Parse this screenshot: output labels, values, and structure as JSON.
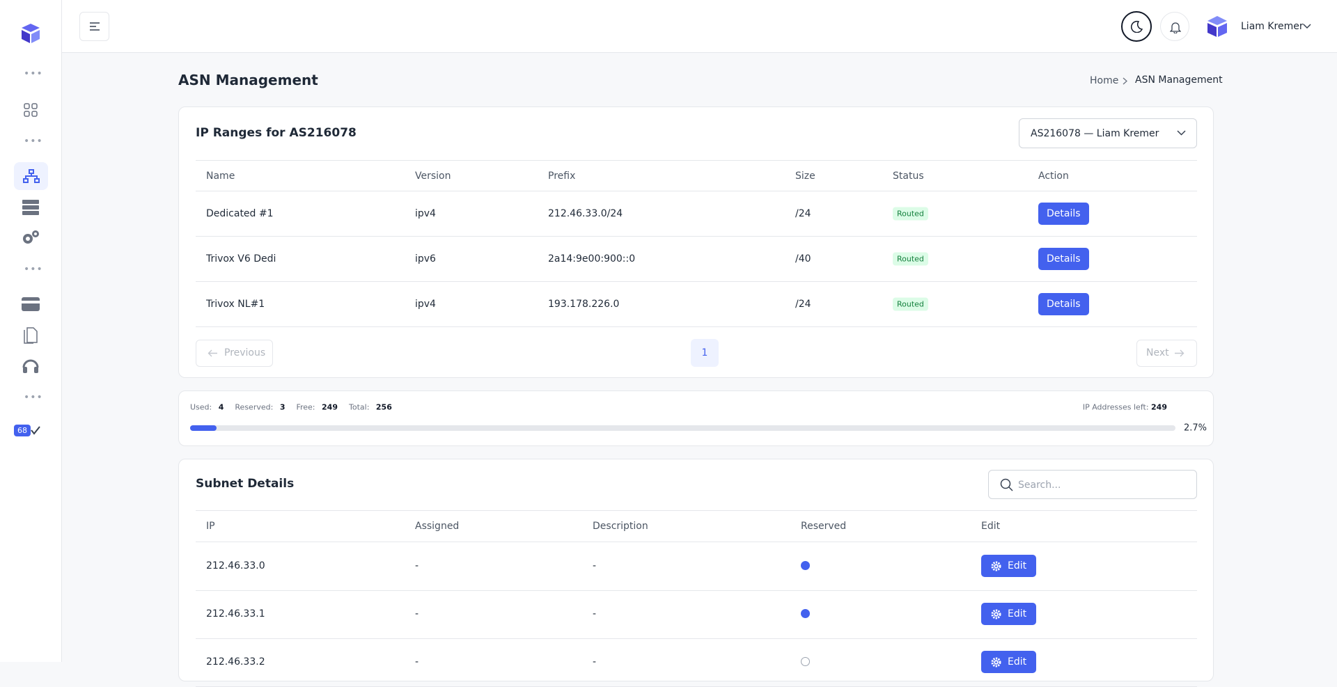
{
  "header": {
    "user_name": "Liam Kremer"
  },
  "sidebar": {
    "badge": "68"
  },
  "page": {
    "title": "ASN Management",
    "breadcrumb": [
      "Home",
      "ASN Management"
    ]
  },
  "ip_ranges": {
    "title": "IP Ranges for AS216078",
    "selector": "AS216078 — Liam Kremer",
    "columns": [
      "Name",
      "Version",
      "Prefix",
      "Size",
      "Status",
      "Action"
    ],
    "rows": [
      [
        "Dedicated #1",
        "ipv4",
        "212.46.33.0/24",
        "/24",
        "Routed",
        "Details"
      ],
      [
        "Trivox V6 Dedi",
        "ipv6",
        "2a14:9e00:900::0",
        "/40",
        "Routed",
        "Details"
      ],
      [
        "Trivox NL#1",
        "ipv4",
        "193.178.226.0",
        "/24",
        "Routed",
        "Details"
      ]
    ],
    "pagination": {
      "previous": "Previous",
      "page": "1",
      "next": "Next"
    }
  },
  "usage": {
    "stats": [
      {
        "label": "Used:",
        "value": 4
      },
      {
        "label": "Reserved:",
        "value": 3
      },
      {
        "label": "Free:",
        "value": 249
      },
      {
        "label": "Total:",
        "value": 256
      }
    ],
    "left_label": "IP Addresses left:",
    "left_value": 249,
    "percent": {
      "value": 2.7,
      "label": "2.7%"
    }
  },
  "subnet": {
    "title": "Subnet Details",
    "search_placeholder": "Search...",
    "columns": [
      "IP",
      "Assigned",
      "Description",
      "Reserved",
      "Edit"
    ],
    "rows": [
      {
        "ip": "212.46.33.0",
        "assigned": "-",
        "description": "-",
        "reserved": true,
        "edit": "Edit"
      },
      {
        "ip": "212.46.33.1",
        "assigned": "-",
        "description": "-",
        "reserved": true,
        "edit": "Edit"
      },
      {
        "ip": "212.46.33.2",
        "assigned": "-",
        "description": "-",
        "reserved": false,
        "edit": "Edit"
      }
    ]
  }
}
